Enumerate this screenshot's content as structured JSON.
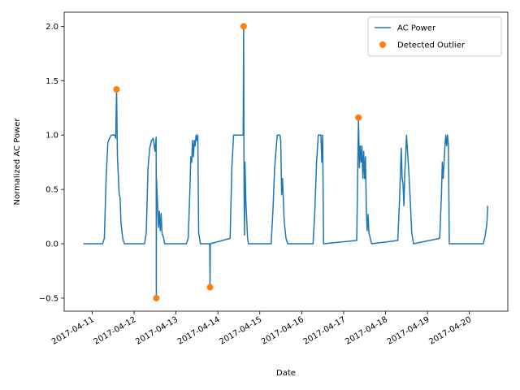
{
  "chart_data": {
    "type": "line",
    "xlabel": "Date",
    "ylabel": "Normalized AC Power",
    "xlim": [
      "2017-04-10 08:00",
      "2017-04-20 22:00"
    ],
    "xticks": [
      "2017-04-11",
      "2017-04-12",
      "2017-04-13",
      "2017-04-14",
      "2017-04-15",
      "2017-04-16",
      "2017-04-17",
      "2017-04-18",
      "2017-04-19",
      "2017-04-20"
    ],
    "ylim": [
      -0.62,
      2.13
    ],
    "yticks": [
      {
        "value": -0.5,
        "label": "−0.5"
      },
      {
        "value": 0,
        "label": "0.0"
      },
      {
        "value": 0.5,
        "label": "0.5"
      },
      {
        "value": 1,
        "label": "1.0"
      },
      {
        "value": 1.5,
        "label": "1.5"
      },
      {
        "value": 2,
        "label": "2.0"
      }
    ],
    "legend": "upper right",
    "series": [
      {
        "name": "AC Power",
        "type": "line",
        "color": "#1f77b4",
        "x": [
          "2017-04-10 19:00",
          "2017-04-11 06:00",
          "2017-04-11 07:00",
          "2017-04-11 08:00",
          "2017-04-11 09:00",
          "2017-04-11 10:00",
          "2017-04-11 11:00",
          "2017-04-11 13:00",
          "2017-04-11 13:30",
          "2017-04-11 14:00",
          "2017-04-11 14:30",
          "2017-04-11 15:30",
          "2017-04-11 16:00",
          "2017-04-11 16:30",
          "2017-04-11 17:30",
          "2017-04-11 18:30",
          "2017-04-12 06:00",
          "2017-04-12 07:00",
          "2017-04-12 08:00",
          "2017-04-12 09:00",
          "2017-04-12 10:00",
          "2017-04-12 11:00",
          "2017-04-12 12:00",
          "2017-04-12 12:40",
          "2017-04-12 12:45",
          "2017-04-12 12:50",
          "2017-04-12 13:30",
          "2017-04-12 14:00",
          "2017-04-12 14:30",
          "2017-04-12 15:00",
          "2017-04-12 15:30",
          "2017-04-12 16:00",
          "2017-04-12 17:00",
          "2017-04-12 17:30",
          "2017-04-13 06:00",
          "2017-04-13 07:00",
          "2017-04-13 08:00",
          "2017-04-13 08:30",
          "2017-04-13 09:00",
          "2017-04-13 09:30",
          "2017-04-13 10:00",
          "2017-04-13 10:30",
          "2017-04-13 11:00",
          "2017-04-13 11:30",
          "2017-04-13 12:00",
          "2017-04-13 12:30",
          "2017-04-13 13:00",
          "2017-04-13 14:00",
          "2017-04-13 19:20",
          "2017-04-13 19:30",
          "2017-04-13 19:40",
          "2017-04-14 07:00",
          "2017-04-14 08:00",
          "2017-04-14 09:00",
          "2017-04-14 14:30",
          "2017-04-14 14:45",
          "2017-04-14 15:00",
          "2017-04-14 15:15",
          "2017-04-14 15:30",
          "2017-04-14 16:00",
          "2017-04-14 17:00",
          "2017-04-14 17:30",
          "2017-04-15 06:30",
          "2017-04-15 07:30",
          "2017-04-15 08:30",
          "2017-04-15 10:00",
          "2017-04-15 11:30",
          "2017-04-15 12:00",
          "2017-04-15 12:30",
          "2017-04-15 13:00",
          "2017-04-15 13:30",
          "2017-04-15 14:00",
          "2017-04-15 15:00",
          "2017-04-15 16:00",
          "2017-04-16 06:30",
          "2017-04-16 07:30",
          "2017-04-16 08:30",
          "2017-04-16 09:30",
          "2017-04-16 11:00",
          "2017-04-16 11:30",
          "2017-04-16 12:00",
          "2017-04-16 12:30",
          "2017-04-17 07:30",
          "2017-04-17 08:30",
          "2017-04-17 09:00",
          "2017-04-17 09:30",
          "2017-04-17 10:00",
          "2017-04-17 10:30",
          "2017-04-17 11:00",
          "2017-04-17 11:30",
          "2017-04-17 12:00",
          "2017-04-17 12:30",
          "2017-04-17 13:00",
          "2017-04-17 13:30",
          "2017-04-17 14:00",
          "2017-04-17 14:30",
          "2017-04-17 16:00",
          "2017-04-18 07:00",
          "2017-04-18 08:00",
          "2017-04-18 09:00",
          "2017-04-18 09:30",
          "2017-04-18 10:00",
          "2017-04-18 10:30",
          "2017-04-18 11:00",
          "2017-04-18 11:30",
          "2017-04-18 12:00",
          "2017-04-18 13:00",
          "2017-04-18 14:00",
          "2017-04-18 15:00",
          "2017-04-18 16:00",
          "2017-04-19 07:00",
          "2017-04-19 08:00",
          "2017-04-19 08:30",
          "2017-04-19 09:00",
          "2017-04-19 10:00",
          "2017-04-19 10:30",
          "2017-04-19 11:00",
          "2017-04-19 11:30",
          "2017-04-19 12:00",
          "2017-04-19 12:30",
          "2017-04-20 08:00",
          "2017-04-20 09:00",
          "2017-04-20 10:00",
          "2017-04-20 10:30"
        ],
        "values": [
          0,
          0,
          0.05,
          0.6,
          0.93,
          0.97,
          1.0,
          1.0,
          0.97,
          1.42,
          0.8,
          0.45,
          0.43,
          0.2,
          0.05,
          0,
          0,
          0.1,
          0.7,
          0.88,
          0.95,
          0.97,
          0.85,
          0.98,
          -0.5,
          0.6,
          0.35,
          0.15,
          0.3,
          0.12,
          0.28,
          0.1,
          0.05,
          0,
          0,
          0.05,
          0.5,
          0.8,
          0.75,
          0.95,
          0.8,
          0.95,
          0.9,
          1.0,
          0.95,
          1.0,
          0.1,
          0,
          0,
          -0.4,
          0,
          0.05,
          0.7,
          1.0,
          1.0,
          2.0,
          0.5,
          0.08,
          0.75,
          0.4,
          0.05,
          0,
          0,
          0.3,
          0.7,
          1.0,
          1.0,
          0.95,
          0.45,
          0.6,
          0.4,
          0.2,
          0.05,
          0,
          0,
          0.3,
          0.75,
          1.0,
          1.0,
          0.75,
          1.0,
          0,
          0.03,
          1.16,
          0.7,
          0.9,
          0.75,
          0.9,
          0.6,
          0.85,
          0.6,
          0.8,
          0.3,
          0.12,
          0.27,
          0.1,
          0,
          0.03,
          0.4,
          0.88,
          0.6,
          0.55,
          0.35,
          0.65,
          0.8,
          1.0,
          0.75,
          0.45,
          0.1,
          0,
          0.05,
          0.45,
          0.75,
          0.6,
          0.9,
          1.0,
          0.9,
          1.0,
          0.9,
          0,
          0,
          0.07,
          0.18,
          0.35
        ]
      },
      {
        "name": "Detected Outlier",
        "type": "scatter",
        "color": "#ff7f0e",
        "x": [
          "2017-04-11 14:00",
          "2017-04-12 12:45",
          "2017-04-13 19:30",
          "2017-04-14 14:45",
          "2017-04-17 08:30"
        ],
        "values": [
          1.42,
          -0.5,
          -0.4,
          2.0,
          1.16
        ]
      }
    ]
  }
}
